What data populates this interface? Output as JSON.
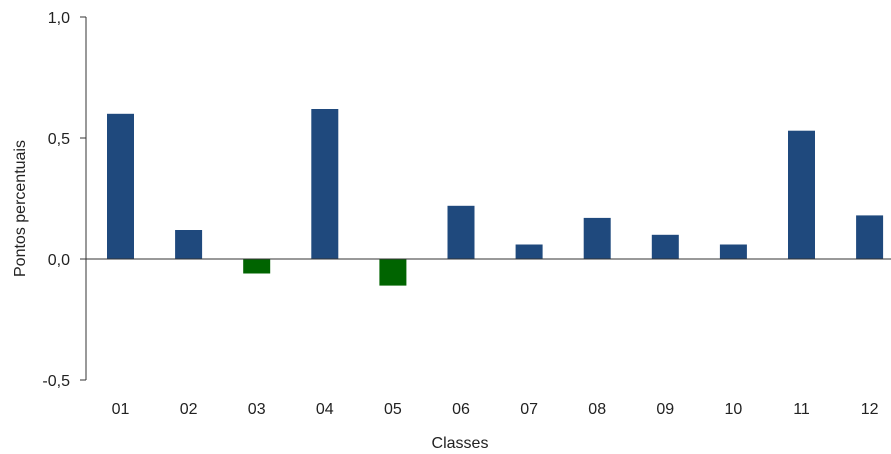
{
  "chart_data": {
    "type": "bar",
    "xlabel": "Classes",
    "ylabel": "Pontos percentuais",
    "ylim": [
      -0.5,
      1.0
    ],
    "yticks": [
      1.0,
      0.5,
      0.0,
      -0.5
    ],
    "ytick_labels": [
      "1,0",
      "0,5",
      "0,0",
      "-0,5"
    ],
    "categories": [
      "01",
      "02",
      "03",
      "04",
      "05",
      "06",
      "07",
      "08",
      "09",
      "10",
      "11",
      "12"
    ],
    "values": [
      0.6,
      0.12,
      -0.06,
      0.62,
      -0.11,
      0.22,
      0.06,
      0.17,
      0.1,
      0.06,
      0.53,
      0.18
    ],
    "colors": {
      "positive": "#1f497d",
      "negative": "#006400",
      "axis": "#333333"
    },
    "grid": false,
    "legend": "none"
  }
}
